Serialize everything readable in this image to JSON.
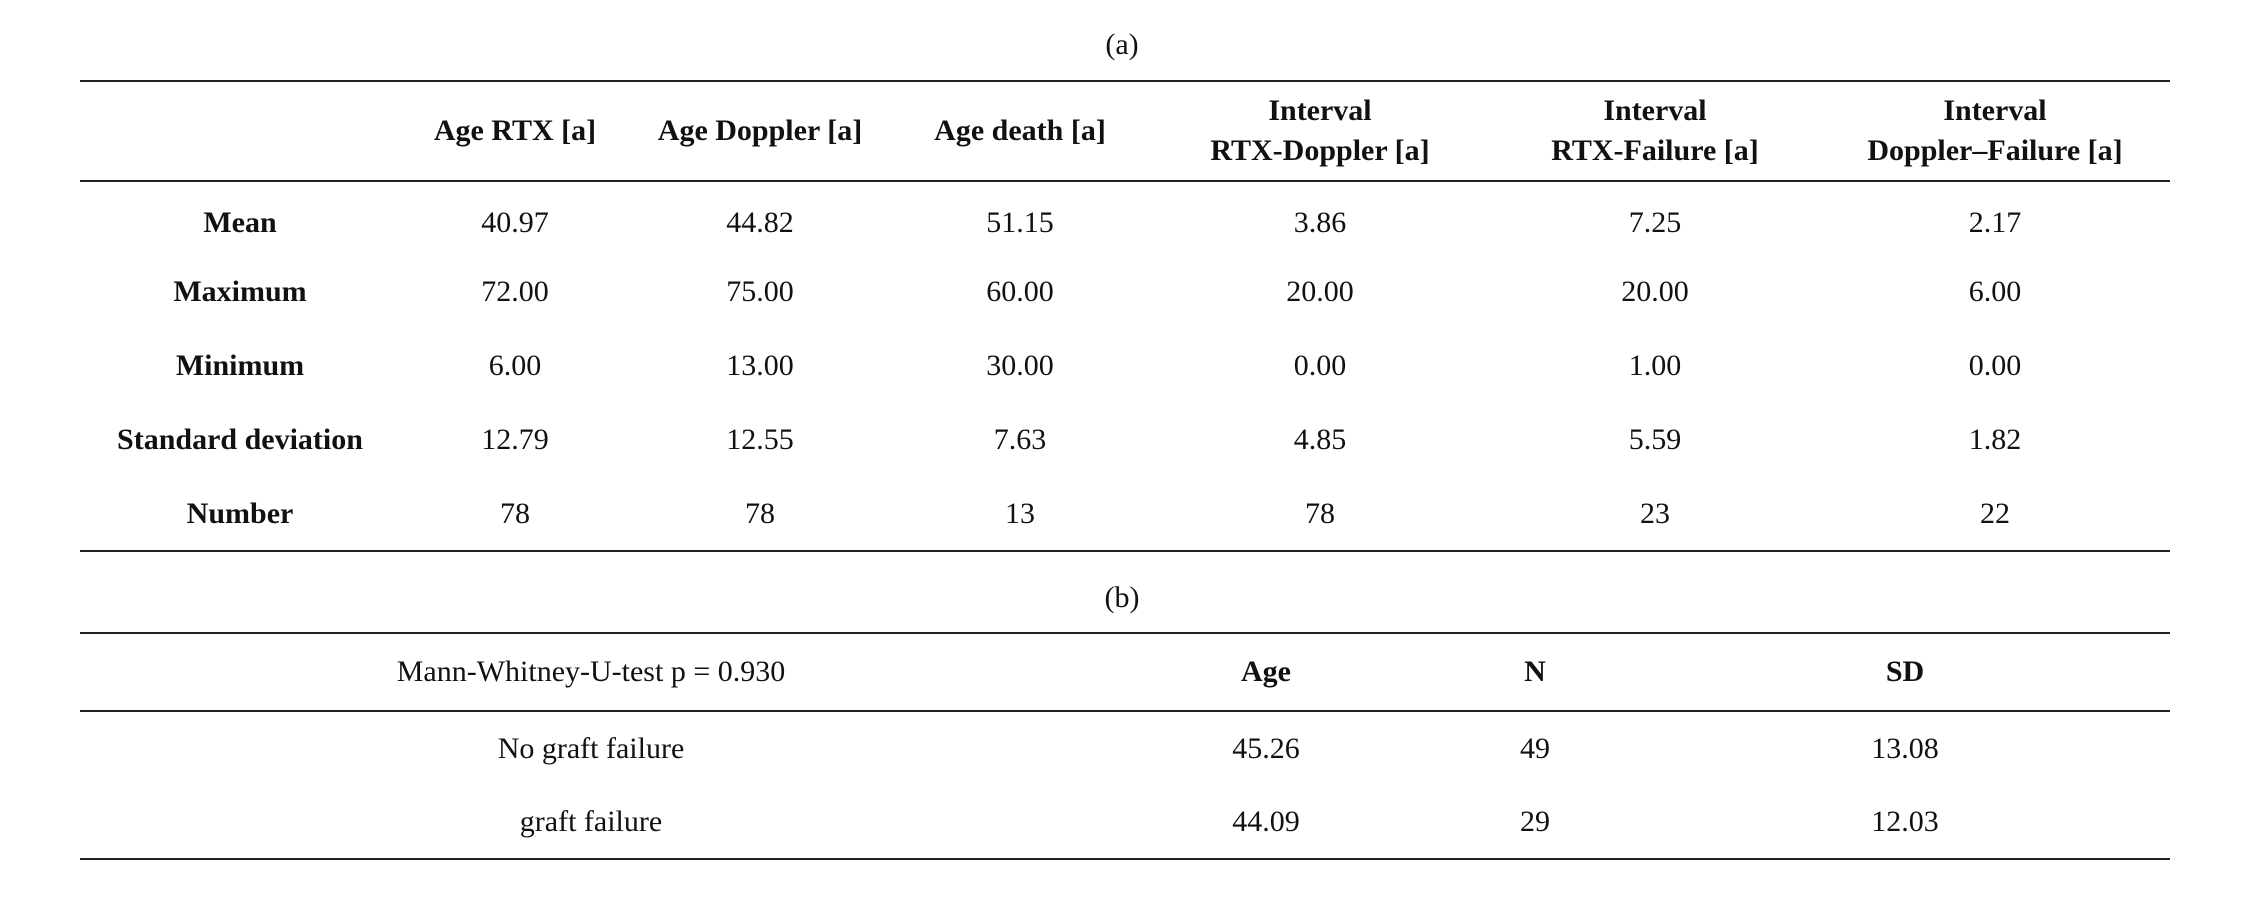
{
  "table_a": {
    "caption": "(a)",
    "columns": [
      "",
      "Age RTX [a]",
      "Age Doppler [a]",
      "Age death [a]",
      [
        "Interval",
        "RTX-Doppler [a]"
      ],
      [
        "Interval",
        "RTX-Failure [a]"
      ],
      [
        "Interval",
        "Doppler–Failure [a]"
      ]
    ],
    "rows": [
      {
        "label": "Mean",
        "values": [
          "40.97",
          "44.82",
          "51.15",
          "3.86",
          "7.25",
          "2.17"
        ]
      },
      {
        "label": "Maximum",
        "values": [
          "72.00",
          "75.00",
          "60.00",
          "20.00",
          "20.00",
          "6.00"
        ]
      },
      {
        "label": "Minimum",
        "values": [
          "6.00",
          "13.00",
          "30.00",
          "0.00",
          "1.00",
          "0.00"
        ]
      },
      {
        "label": "Standard deviation",
        "values": [
          "12.79",
          "12.55",
          "7.63",
          "4.85",
          "5.59",
          "1.82"
        ]
      },
      {
        "label": "Number",
        "values": [
          "78",
          "78",
          "13",
          "78",
          "23",
          "22"
        ]
      }
    ]
  },
  "table_b": {
    "caption": "(b)",
    "header": {
      "test": "Mann-Whitney-U-test p = 0.930",
      "age": "Age",
      "n": "N",
      "sd": "SD"
    },
    "rows": [
      {
        "label": "No graft failure",
        "age": "45.26",
        "n": "49",
        "sd": "13.08"
      },
      {
        "label": "graft failure",
        "age": "44.09",
        "n": "29",
        "sd": "12.03"
      }
    ]
  }
}
